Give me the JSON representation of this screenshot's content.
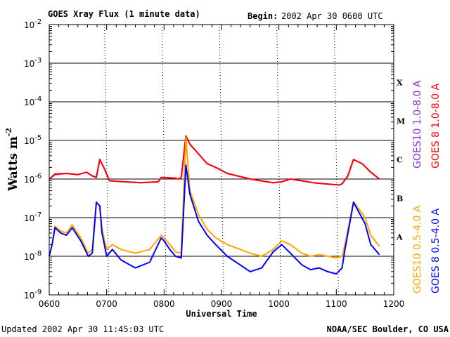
{
  "chart_data": {
    "type": "line",
    "title": "GOES Xray Flux (1 minute data)",
    "begin_label": "Begin:",
    "begin_value": "2002 Apr 30 0600 UTC",
    "xlabel": "Universal Time",
    "ylabel": "Watts m",
    "ylabel_exp": "-2",
    "x_ticks": [
      "0600",
      "0700",
      "0800",
      "0900",
      "1000",
      "1100",
      "1200"
    ],
    "xlim_hours": [
      6,
      12
    ],
    "y_scale": "log",
    "ylim": [
      1e-09,
      0.01
    ],
    "y_ticks": [
      {
        "base": "10",
        "exp": "-2"
      },
      {
        "base": "10",
        "exp": "-3"
      },
      {
        "base": "10",
        "exp": "-4"
      },
      {
        "base": "10",
        "exp": "-5"
      },
      {
        "base": "10",
        "exp": "-6"
      },
      {
        "base": "10",
        "exp": "-7"
      },
      {
        "base": "10",
        "exp": "-8"
      },
      {
        "base": "10",
        "exp": "-9"
      }
    ],
    "flare_classes": [
      {
        "label": "X",
        "from": 0.0001,
        "to": 0.001
      },
      {
        "label": "M",
        "from": 1e-05,
        "to": 0.0001
      },
      {
        "label": "C",
        "from": 1e-06,
        "to": 1e-05
      },
      {
        "label": "B",
        "from": 1e-07,
        "to": 1e-06
      },
      {
        "label": "A",
        "from": 1e-08,
        "to": 1e-07
      }
    ],
    "grid": "horizontal lines at each decade from 1e-8 to 1e-3",
    "series": [
      {
        "name": "GOES10 1.0-8.0 A",
        "color": "#8a2be2",
        "x": [
          6.0,
          6.1,
          6.3,
          6.5,
          6.65,
          6.75,
          6.82,
          6.88,
          6.95,
          7.05,
          7.3,
          7.6,
          7.9,
          7.95,
          8.2,
          8.25,
          8.3,
          8.38,
          8.45,
          8.6,
          8.75,
          8.9,
          9.1,
          9.5,
          9.9,
          10.05,
          10.2,
          10.4,
          10.6,
          10.8,
          11.05,
          11.1,
          11.2,
          11.3,
          11.45,
          11.6,
          11.75
        ],
        "y": [
          1e-06,
          1.3e-06,
          1.4e-06,
          1.3e-06,
          1.5e-06,
          1.2e-06,
          1.1e-06,
          3.2e-06,
          2e-06,
          9e-07,
          8.5e-07,
          8e-07,
          8.5e-07,
          1.1e-06,
          1.05e-06,
          1e-06,
          1.1e-06,
          1.3e-05,
          8e-06,
          4.5e-06,
          2.5e-06,
          2e-06,
          1.4e-06,
          1e-06,
          8e-07,
          8.5e-07,
          1e-06,
          9e-07,
          8e-07,
          7.5e-07,
          7e-07,
          7.5e-07,
          1.2e-06,
          3.2e-06,
          2.5e-06,
          1.5e-06,
          1e-06
        ]
      },
      {
        "name": "GOES 8 1.0-8.0 A",
        "color": "#ff0000",
        "x": [
          6.0,
          6.1,
          6.3,
          6.5,
          6.65,
          6.75,
          6.82,
          6.88,
          6.95,
          7.05,
          7.3,
          7.6,
          7.9,
          7.95,
          8.2,
          8.25,
          8.3,
          8.38,
          8.45,
          8.6,
          8.75,
          8.9,
          9.1,
          9.5,
          9.9,
          10.05,
          10.2,
          10.4,
          10.6,
          10.8,
          11.05,
          11.1,
          11.2,
          11.3,
          11.45,
          11.6,
          11.75
        ],
        "y": [
          1e-06,
          1.35e-06,
          1.4e-06,
          1.3e-06,
          1.5e-06,
          1.2e-06,
          1.1e-06,
          3.2e-06,
          2e-06,
          9e-07,
          8.5e-07,
          8e-07,
          8.5e-07,
          1.1e-06,
          1.05e-06,
          1e-06,
          1.1e-06,
          1.3e-05,
          8e-06,
          4.5e-06,
          2.5e-06,
          2e-06,
          1.4e-06,
          1e-06,
          8e-07,
          8.5e-07,
          1e-06,
          9e-07,
          8e-07,
          7.5e-07,
          7e-07,
          7.5e-07,
          1.2e-06,
          3.2e-06,
          2.5e-06,
          1.5e-06,
          1e-06
        ]
      },
      {
        "name": "GOES10 0.5-4.0 A",
        "color": "#ffa500",
        "x": [
          6.0,
          6.05,
          6.1,
          6.2,
          6.3,
          6.4,
          6.55,
          6.68,
          6.75,
          6.82,
          6.88,
          6.92,
          7.0,
          7.1,
          7.25,
          7.5,
          7.75,
          7.95,
          8.0,
          8.1,
          8.2,
          8.3,
          8.38,
          8.45,
          8.6,
          8.75,
          8.9,
          9.1,
          9.5,
          9.7,
          9.9,
          10.05,
          10.2,
          10.4,
          10.55,
          10.7,
          10.85,
          11.0,
          11.1,
          11.15,
          11.3,
          11.5,
          11.6,
          11.75
        ],
        "y": [
          1e-08,
          2e-08,
          6e-08,
          4.5e-08,
          4e-08,
          6.5e-08,
          3e-08,
          1.2e-08,
          1.5e-08,
          2.5e-07,
          2e-07,
          5e-08,
          1.5e-08,
          2e-08,
          1.5e-08,
          1.2e-08,
          1.5e-08,
          3.5e-08,
          3e-08,
          2e-08,
          1.3e-08,
          1.2e-08,
          1.2e-05,
          5e-07,
          1.2e-07,
          5e-08,
          3e-08,
          2e-08,
          1.2e-08,
          1e-08,
          1.5e-08,
          2.5e-08,
          2e-08,
          1.2e-08,
          1e-08,
          1.1e-08,
          1e-08,
          9e-09,
          1e-08,
          2e-08,
          2.6e-07,
          1e-07,
          3.5e-08,
          1.8e-08
        ]
      },
      {
        "name": "GOES 8 0.5-4.0 A",
        "color": "#0000ff",
        "x": [
          6.0,
          6.05,
          6.1,
          6.2,
          6.3,
          6.4,
          6.55,
          6.68,
          6.75,
          6.82,
          6.88,
          6.92,
          7.0,
          7.1,
          7.25,
          7.5,
          7.75,
          7.95,
          8.0,
          8.1,
          8.2,
          8.3,
          8.38,
          8.45,
          8.6,
          8.75,
          8.9,
          9.1,
          9.5,
          9.7,
          9.9,
          10.05,
          10.2,
          10.4,
          10.55,
          10.7,
          10.85,
          11.0,
          11.1,
          11.15,
          11.3,
          11.5,
          11.6,
          11.75
        ],
        "y": [
          1e-08,
          2e-08,
          5.5e-08,
          4e-08,
          3.5e-08,
          5.5e-08,
          2.5e-08,
          1e-08,
          1.2e-08,
          2.5e-07,
          2e-07,
          4e-08,
          1e-08,
          1.5e-08,
          8e-09,
          5e-09,
          7e-09,
          3e-08,
          2.5e-08,
          1.5e-08,
          1e-08,
          9e-09,
          2.3e-06,
          4e-07,
          8e-08,
          3.5e-08,
          2e-08,
          1e-08,
          4e-09,
          5e-09,
          1.3e-08,
          2e-08,
          1.2e-08,
          6e-09,
          4.5e-09,
          5e-09,
          4e-09,
          3.5e-09,
          5e-09,
          1.5e-08,
          2.5e-07,
          7e-08,
          2e-08,
          1.1e-08
        ]
      }
    ]
  },
  "footer": {
    "updated": "Updated 2002 Apr 30 11:45:03 UTC",
    "credit": "NOAA/SEC Boulder, CO USA"
  }
}
